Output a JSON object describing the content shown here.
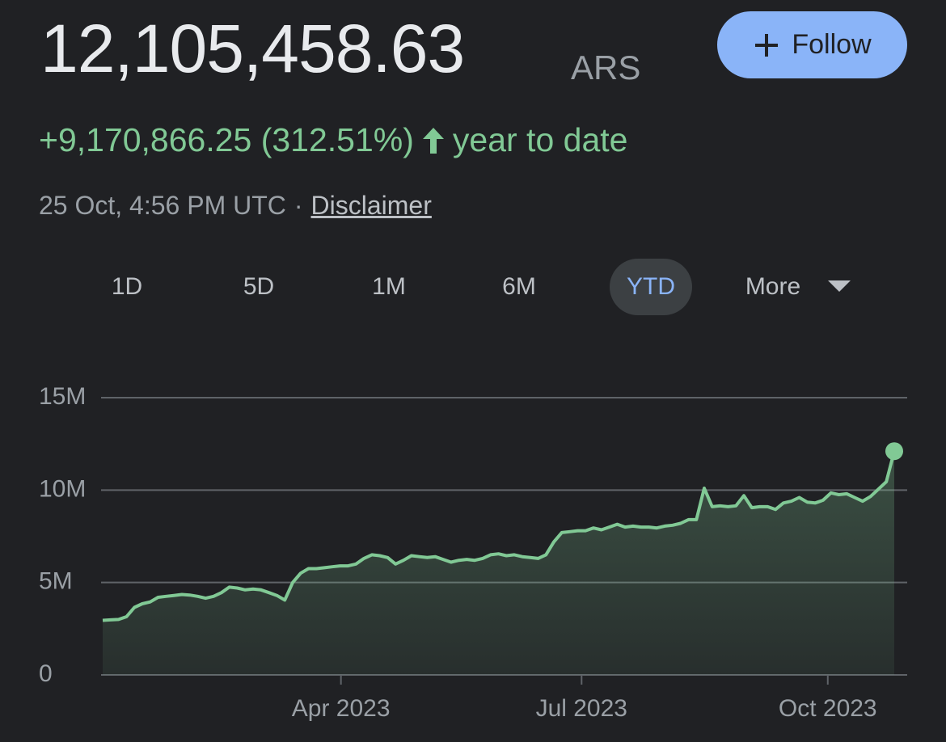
{
  "header": {
    "price": "12,105,458.63",
    "currency": "ARS",
    "follow": "Follow",
    "change": "+9,170,866.25 (312.51%)",
    "period": "year to date",
    "timestamp": "25 Oct, 4:56 PM UTC",
    "separator": "·",
    "disclaimer": "Disclaimer"
  },
  "ranges": [
    "1D",
    "5D",
    "1M",
    "6M",
    "YTD",
    "More"
  ],
  "selected_range": "YTD",
  "chart_data": {
    "type": "area",
    "color": "#81c995",
    "values": [
      2950000,
      2980000,
      3000000,
      3150000,
      3650000,
      3850000,
      3950000,
      4200000,
      4250000,
      4300000,
      4350000,
      4320000,
      4250000,
      4150000,
      4250000,
      4450000,
      4750000,
      4700000,
      4600000,
      4650000,
      4600000,
      4450000,
      4300000,
      4050000,
      5000000,
      5500000,
      5750000,
      5750000,
      5800000,
      5850000,
      5900000,
      5900000,
      6000000,
      6300000,
      6500000,
      6450000,
      6350000,
      6000000,
      6200000,
      6450000,
      6400000,
      6350000,
      6400000,
      6250000,
      6100000,
      6200000,
      6250000,
      6200000,
      6300000,
      6500000,
      6550000,
      6450000,
      6500000,
      6400000,
      6350000,
      6300000,
      6500000,
      7200000,
      7700000,
      7750000,
      7800000,
      7800000,
      7950000,
      7850000,
      8000000,
      8150000,
      8000000,
      8050000,
      8000000,
      8000000,
      7950000,
      8050000,
      8100000,
      8200000,
      8400000,
      8400000,
      10100000,
      9100000,
      9150000,
      9100000,
      9150000,
      9700000,
      9050000,
      9100000,
      9100000,
      8950000,
      9300000,
      9400000,
      9600000,
      9350000,
      9300000,
      9450000,
      9850000,
      9750000,
      9800000,
      9600000,
      9400000,
      9650000,
      10050000,
      10450000,
      12105458.63
    ],
    "xlim": [
      0,
      100
    ],
    "xticks": [
      {
        "value": 30.1,
        "label": "Apr 2023"
      },
      {
        "value": 60.5,
        "label": "Jul 2023"
      },
      {
        "value": 91.6,
        "label": "Oct 2023"
      }
    ],
    "ylim": [
      0,
      15000000
    ],
    "yticks": [
      0,
      {
        "value": 5000000,
        "label": "5M"
      },
      {
        "value": 10000000,
        "label": "10M"
      },
      {
        "value": 15000000,
        "label": "15M"
      }
    ],
    "grid": true
  }
}
